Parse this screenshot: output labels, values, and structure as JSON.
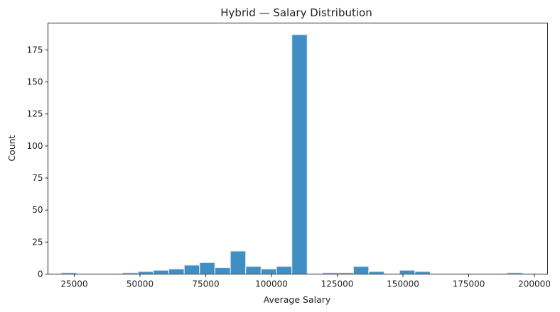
{
  "chart_data": {
    "type": "bar",
    "title": "Hybrid — Salary Distribution",
    "xlabel": "Average Salary",
    "ylabel": "Count",
    "xlim": [
      15000,
      205000
    ],
    "ylim": [
      0,
      196
    ],
    "xticks": [
      25000,
      50000,
      75000,
      100000,
      125000,
      150000,
      175000,
      200000
    ],
    "yticks": [
      0,
      25,
      50,
      75,
      100,
      125,
      150,
      175
    ],
    "bin_width": 5850,
    "bins": [
      {
        "start": 20000,
        "count": 1
      },
      {
        "start": 25850,
        "count": 0
      },
      {
        "start": 31700,
        "count": 0
      },
      {
        "start": 37550,
        "count": 0
      },
      {
        "start": 43400,
        "count": 1
      },
      {
        "start": 49250,
        "count": 2
      },
      {
        "start": 55100,
        "count": 3
      },
      {
        "start": 60950,
        "count": 4
      },
      {
        "start": 66800,
        "count": 7
      },
      {
        "start": 72650,
        "count": 9
      },
      {
        "start": 78500,
        "count": 5
      },
      {
        "start": 84350,
        "count": 18
      },
      {
        "start": 90200,
        "count": 6
      },
      {
        "start": 96050,
        "count": 4
      },
      {
        "start": 101900,
        "count": 6
      },
      {
        "start": 107750,
        "count": 187
      },
      {
        "start": 113600,
        "count": 0
      },
      {
        "start": 119450,
        "count": 1
      },
      {
        "start": 125300,
        "count": 1
      },
      {
        "start": 131150,
        "count": 6
      },
      {
        "start": 137000,
        "count": 2
      },
      {
        "start": 142850,
        "count": 0
      },
      {
        "start": 148700,
        "count": 3
      },
      {
        "start": 154550,
        "count": 2
      },
      {
        "start": 160400,
        "count": 0
      },
      {
        "start": 166250,
        "count": 0
      },
      {
        "start": 172100,
        "count": 0
      },
      {
        "start": 177950,
        "count": 0
      },
      {
        "start": 183800,
        "count": 0
      },
      {
        "start": 189650,
        "count": 1
      }
    ],
    "bar_color": "#3f8ec4",
    "grid": false
  }
}
